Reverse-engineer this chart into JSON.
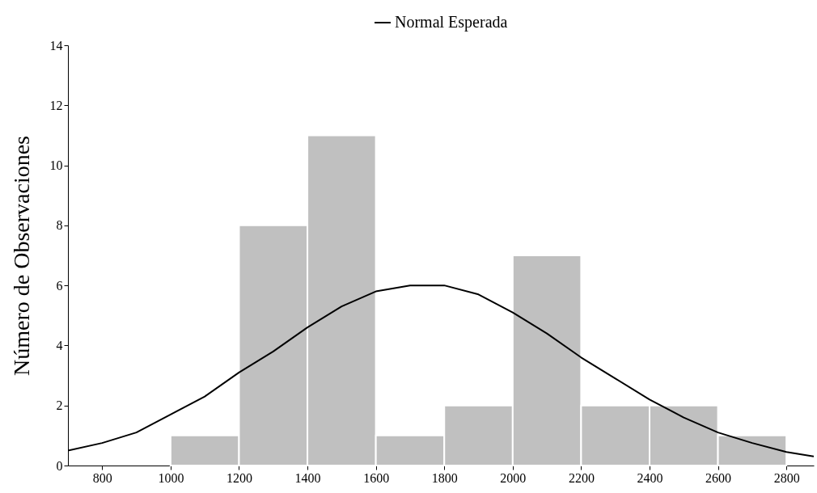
{
  "chart_data": {
    "type": "histogram",
    "ylabel": "Número de Observaciones",
    "bins": [
      1000,
      1200,
      1400,
      1600,
      1800,
      2000,
      2200,
      2400,
      2600,
      2800
    ],
    "xlim": [
      700,
      2880
    ],
    "xticks": [
      800,
      1000,
      1200,
      1400,
      1600,
      1800,
      2000,
      2200,
      2400,
      2600,
      2800
    ],
    "ylim": [
      0,
      14
    ],
    "yticks": [
      0,
      2,
      4,
      6,
      8,
      10,
      12,
      14
    ],
    "legend": "top",
    "grid": false,
    "series": [
      {
        "color": "#c0c0c0",
        "values": [
          1,
          8,
          11,
          1,
          2,
          7,
          2,
          2,
          1
        ]
      },
      {
        "type": "line",
        "name": "Normal Esperada",
        "color": "#000000",
        "x": [
          700,
          800,
          900,
          1000,
          1100,
          1200,
          1300,
          1400,
          1500,
          1600,
          1700,
          1800,
          1900,
          2000,
          2100,
          2200,
          2300,
          2400,
          2500,
          2600,
          2700,
          2800,
          2880
        ],
        "values": [
          0.5,
          0.75,
          1.1,
          1.7,
          2.3,
          3.1,
          3.8,
          4.6,
          5.3,
          5.8,
          6.0,
          6.0,
          5.7,
          5.1,
          4.4,
          3.6,
          2.9,
          2.2,
          1.6,
          1.1,
          0.75,
          0.45,
          0.3
        ]
      }
    ]
  }
}
